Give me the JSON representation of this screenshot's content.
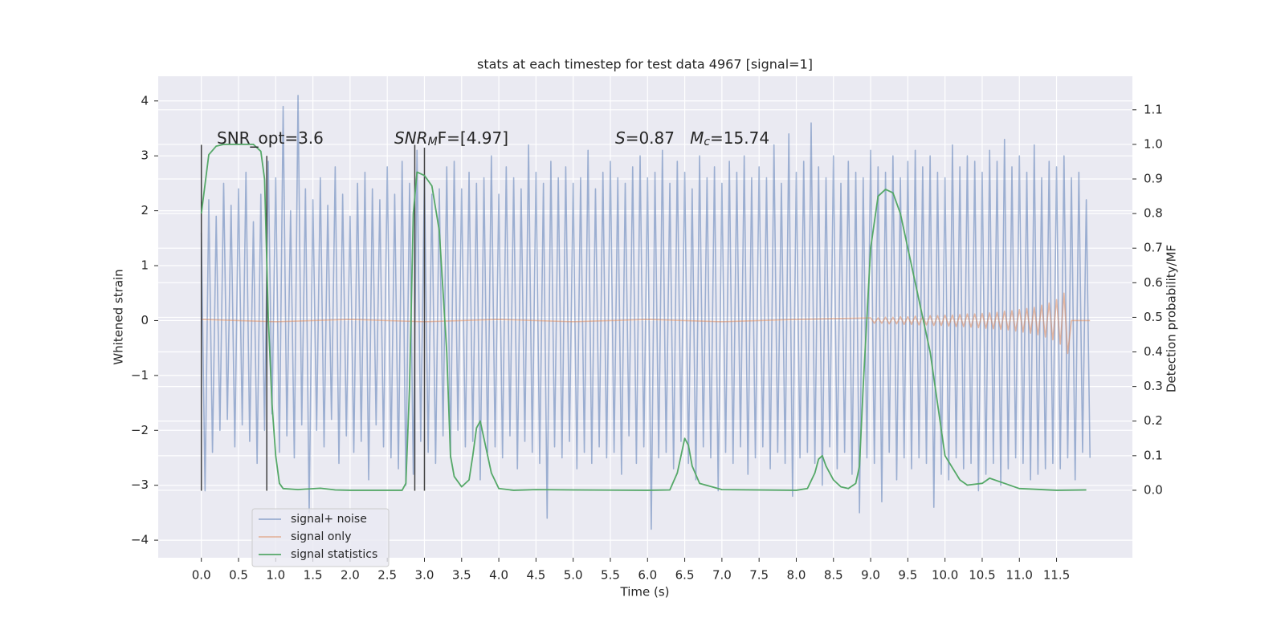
{
  "chart_data": {
    "type": "line",
    "title": "stats at each timestep for test data 4967 [signal=1]",
    "xlabel": "Time (s)",
    "ylabel": "Whitened strain",
    "y2label": "Detection probability/MF",
    "xlim": [
      -0.58,
      12.52
    ],
    "ylim": [
      -4.32,
      4.45
    ],
    "y2lim": [
      -0.195,
      1.197
    ],
    "xticks": [
      {
        "value": 0,
        "label": "0.0"
      },
      0.5,
      {
        "value": 1,
        "label": "1.0"
      },
      1.5,
      {
        "value": 2,
        "label": "2.0"
      },
      2.5,
      {
        "value": 3,
        "label": "3.0"
      },
      3.5,
      {
        "value": 4,
        "label": "4.0"
      },
      4.5,
      {
        "value": 5,
        "label": "5.0"
      },
      5.5,
      {
        "value": 6,
        "label": "6.0"
      },
      6.5,
      {
        "value": 7,
        "label": "7.0"
      },
      7.5,
      {
        "value": 8,
        "label": "8.0"
      },
      8.5,
      {
        "value": 9,
        "label": "9.0"
      },
      9.5,
      {
        "value": 10,
        "label": "10.0"
      },
      10.5,
      {
        "value": 11,
        "label": "11.0"
      },
      11.5
    ],
    "yticks": [
      {
        "value": -4,
        "label": "−4"
      },
      {
        "value": -3,
        "label": "−3"
      },
      {
        "value": -2,
        "label": "−2"
      },
      {
        "value": -1,
        "label": "−1"
      },
      0,
      1,
      2,
      3,
      4
    ],
    "y2ticks": [
      {
        "value": 0,
        "label": "0.0"
      },
      0.1,
      0.2,
      0.3,
      0.4,
      0.5,
      0.6,
      0.7,
      0.8,
      0.9,
      {
        "value": 1,
        "label": "1.0"
      },
      1.1
    ],
    "grid": true,
    "legend": "lower left",
    "annotations": [
      [
        {
          "t": "SNR_opt=3.6"
        }
      ],
      [
        {
          "t": "SNR",
          "italic": true
        },
        {
          "t": "M",
          "italic": true,
          "sub": true
        },
        {
          "t": "F=[4.97]"
        }
      ],
      [
        {
          "t": "S",
          "italic": true
        },
        {
          "t": "=0.87   "
        },
        {
          "t": "M",
          "italic": true
        },
        {
          "t": "c",
          "italic": true,
          "sub": true
        },
        {
          "t": "=15.74"
        }
      ]
    ],
    "vline_color": "#404040",
    "vlines": [
      {
        "x": 0,
        "ymin": -3.1,
        "ymax": 3.2
      },
      {
        "x": 0.88,
        "ymin": -3.1,
        "ymax": 3.0
      },
      {
        "x": 2.87,
        "ymin": -3.1,
        "ymax": 3.2
      },
      {
        "x": 3.0,
        "ymin": -3.1,
        "ymax": 3.15
      }
    ],
    "series": [
      {
        "name": "signal+ noise",
        "color": "#4c72b0",
        "alpha": 0.5,
        "x": [
          0,
          0.05,
          0.1,
          0.15,
          0.2,
          0.25,
          0.3,
          0.35,
          0.4,
          0.45,
          0.5,
          0.55,
          0.6,
          0.65,
          0.7,
          0.75,
          0.8,
          0.85,
          0.9,
          0.95,
          1,
          1.05,
          1.1,
          1.15,
          1.2,
          1.25,
          1.3,
          1.35,
          1.4,
          1.45,
          1.5,
          1.55,
          1.6,
          1.65,
          1.7,
          1.75,
          1.8,
          1.85,
          1.9,
          1.95,
          2,
          2.05,
          2.1,
          2.15,
          2.2,
          2.25,
          2.3,
          2.35,
          2.4,
          2.45,
          2.5,
          2.55,
          2.6,
          2.65,
          2.7,
          2.75,
          2.8,
          2.85,
          2.9,
          2.95,
          3,
          3.05,
          3.1,
          3.15,
          3.2,
          3.25,
          3.3,
          3.35,
          3.4,
          3.45,
          3.5,
          3.55,
          3.6,
          3.65,
          3.7,
          3.75,
          3.8,
          3.85,
          3.9,
          3.95,
          4,
          4.05,
          4.1,
          4.15,
          4.2,
          4.25,
          4.3,
          4.35,
          4.4,
          4.45,
          4.5,
          4.55,
          4.6,
          4.65,
          4.7,
          4.75,
          4.8,
          4.85,
          4.9,
          4.95,
          5,
          5.05,
          5.1,
          5.15,
          5.2,
          5.25,
          5.3,
          5.35,
          5.4,
          5.45,
          5.5,
          5.55,
          5.6,
          5.65,
          5.7,
          5.75,
          5.8,
          5.85,
          5.9,
          5.95,
          6,
          6.05,
          6.1,
          6.15,
          6.2,
          6.25,
          6.3,
          6.35,
          6.4,
          6.45,
          6.5,
          6.55,
          6.6,
          6.65,
          6.7,
          6.75,
          6.8,
          6.85,
          6.9,
          6.95,
          7,
          7.05,
          7.1,
          7.15,
          7.2,
          7.25,
          7.3,
          7.35,
          7.4,
          7.45,
          7.5,
          7.55,
          7.6,
          7.65,
          7.7,
          7.75,
          7.8,
          7.85,
          7.9,
          7.95,
          8,
          8.05,
          8.1,
          8.15,
          8.2,
          8.25,
          8.3,
          8.35,
          8.4,
          8.45,
          8.5,
          8.55,
          8.6,
          8.65,
          8.7,
          8.75,
          8.8,
          8.85,
          8.9,
          8.95,
          9,
          9.05,
          9.1,
          9.15,
          9.2,
          9.25,
          9.3,
          9.35,
          9.4,
          9.45,
          9.5,
          9.55,
          9.6,
          9.65,
          9.7,
          9.75,
          9.8,
          9.85,
          9.9,
          9.95,
          10,
          10.05,
          10.1,
          10.15,
          10.2,
          10.25,
          10.3,
          10.35,
          10.4,
          10.45,
          10.5,
          10.55,
          10.6,
          10.65,
          10.7,
          10.75,
          10.8,
          10.85,
          10.9,
          10.95,
          11,
          11.05,
          11.1,
          11.15,
          11.2,
          11.25,
          11.3,
          11.35,
          11.4,
          11.45,
          11.5,
          11.55,
          11.6,
          11.65,
          11.7,
          11.75,
          11.8,
          11.85,
          11.9,
          11.95
        ],
        "values": [
          1.6,
          -3.1,
          2.2,
          -2.4,
          1.9,
          -2.0,
          2.5,
          -1.8,
          2.1,
          -2.3,
          2.4,
          -1.9,
          2.7,
          -2.2,
          1.8,
          -2.6,
          2.3,
          -2.0,
          2.9,
          -1.7,
          2.6,
          -2.4,
          3.9,
          -2.1,
          2.0,
          -2.5,
          4.1,
          -1.9,
          2.4,
          -3.5,
          2.2,
          -2.0,
          2.6,
          -2.3,
          2.1,
          -1.8,
          2.8,
          -2.6,
          2.3,
          -2.1,
          1.9,
          -2.4,
          2.5,
          -2.2,
          2.7,
          -2.9,
          2.4,
          -1.9,
          2.2,
          -2.3,
          2.8,
          -2.5,
          2.3,
          -2.7,
          2.9,
          -3.0,
          2.5,
          -2.8,
          3.1,
          -2.2,
          2.6,
          -2.4,
          2.3,
          -2.6,
          2.4,
          -2.1,
          2.8,
          -2.5,
          2.9,
          -2.0,
          2.4,
          -2.3,
          2.7,
          -2.2,
          2.5,
          -2.9,
          2.6,
          -2.4,
          3.0,
          -2.3,
          2.3,
          -2.5,
          2.8,
          -2.1,
          2.6,
          -2.7,
          2.4,
          -2.2,
          3.2,
          -2.4,
          2.7,
          -2.6,
          2.5,
          -3.6,
          2.9,
          -2.3,
          2.6,
          -2.5,
          2.8,
          -2.2,
          2.5,
          -2.7,
          2.6,
          -2.4,
          3.1,
          -2.6,
          2.4,
          -2.3,
          2.7,
          -2.5,
          2.9,
          -2.4,
          2.6,
          -2.8,
          2.5,
          -2.1,
          2.8,
          -2.6,
          3.0,
          -2.3,
          2.6,
          -3.8,
          2.7,
          -2.5,
          3.1,
          -2.4,
          2.5,
          -2.7,
          2.9,
          -2.2,
          2.7,
          -2.6,
          2.4,
          -2.9,
          3.0,
          -2.3,
          2.6,
          -2.5,
          2.8,
          -3.1,
          2.5,
          -2.4,
          2.9,
          -2.6,
          2.7,
          -2.3,
          3.0,
          -2.8,
          2.6,
          -2.5,
          2.8,
          -2.3,
          2.6,
          -2.7,
          3.2,
          -2.4,
          2.5,
          -2.6,
          3.4,
          -3.2,
          2.7,
          -2.5,
          2.9,
          -2.4,
          3.6,
          -2.6,
          2.8,
          -3.0,
          2.6,
          -2.3,
          3.0,
          -2.7,
          2.5,
          -2.4,
          2.9,
          -2.8,
          2.7,
          -3.5,
          2.6,
          -2.5,
          3.1,
          -2.6,
          2.8,
          -3.3,
          2.7,
          -2.4,
          3.0,
          -2.9,
          2.6,
          -2.5,
          2.9,
          -2.7,
          3.1,
          -2.5,
          2.8,
          -2.6,
          3.0,
          -3.4,
          2.7,
          -2.8,
          2.6,
          -2.9,
          3.2,
          -2.5,
          2.8,
          -2.7,
          3.0,
          -2.6,
          2.9,
          -3.1,
          2.7,
          -2.8,
          3.1,
          -2.6,
          2.9,
          -3.0,
          3.3,
          -2.7,
          2.8,
          -2.5,
          3.0,
          -2.6,
          2.7,
          -2.9,
          3.2,
          -2.8,
          2.6,
          -2.7,
          2.9,
          -2.6,
          2.8,
          -2.7,
          3.0,
          -2.5,
          2.6,
          -2.9,
          2.7,
          -2.4,
          2.2,
          -2.5
        ]
      },
      {
        "name": "signal only",
        "color": "#dd8452",
        "alpha": 0.5,
        "x": [
          0,
          1,
          2,
          3,
          4,
          5,
          6,
          7,
          8,
          9,
          9.05,
          9.1,
          9.15,
          9.2,
          9.25,
          9.3,
          9.35,
          9.4,
          9.45,
          9.5,
          9.55,
          9.6,
          9.65,
          9.7,
          9.75,
          9.8,
          9.85,
          9.9,
          9.95,
          10,
          10.05,
          10.1,
          10.15,
          10.2,
          10.25,
          10.3,
          10.35,
          10.4,
          10.45,
          10.5,
          10.55,
          10.6,
          10.65,
          10.7,
          10.75,
          10.8,
          10.85,
          10.9,
          10.95,
          11,
          11.05,
          11.1,
          11.15,
          11.2,
          11.25,
          11.3,
          11.35,
          11.4,
          11.45,
          11.5,
          11.55,
          11.6,
          11.65,
          11.7,
          11.95
        ],
        "values": [
          0.02,
          -0.02,
          0.02,
          -0.02,
          0.02,
          -0.02,
          0.02,
          -0.02,
          0.02,
          0.05,
          -0.05,
          0.05,
          -0.05,
          0.06,
          -0.06,
          0.06,
          -0.06,
          0.07,
          -0.07,
          0.07,
          -0.07,
          0.08,
          -0.08,
          0.08,
          -0.08,
          0.09,
          -0.09,
          0.09,
          -0.09,
          0.1,
          -0.1,
          0.1,
          -0.11,
          0.11,
          -0.11,
          0.12,
          -0.12,
          0.12,
          -0.13,
          0.13,
          -0.14,
          0.14,
          -0.15,
          0.15,
          -0.16,
          0.17,
          -0.17,
          0.18,
          -0.19,
          0.2,
          -0.21,
          0.22,
          -0.23,
          0.24,
          -0.26,
          0.28,
          -0.3,
          0.32,
          -0.35,
          0.38,
          -0.43,
          0.5,
          -0.6,
          0,
          0
        ]
      },
      {
        "name": "signal statistics",
        "color": "#55a868",
        "axis": "y2",
        "x": [
          0,
          0.1,
          0.2,
          0.3,
          0.5,
          0.7,
          0.8,
          0.85,
          0.9,
          0.95,
          1.0,
          1.05,
          1.1,
          1.3,
          1.6,
          1.8,
          2.0,
          2.5,
          2.7,
          2.75,
          2.8,
          2.85,
          2.9,
          3.0,
          3.1,
          3.2,
          3.3,
          3.35,
          3.4,
          3.5,
          3.6,
          3.65,
          3.7,
          3.75,
          3.8,
          3.9,
          4.0,
          4.2,
          4.5,
          5.0,
          6.0,
          6.3,
          6.4,
          6.5,
          6.55,
          6.6,
          6.7,
          7.0,
          8.0,
          8.15,
          8.25,
          8.3,
          8.35,
          8.4,
          8.5,
          8.6,
          8.7,
          8.8,
          8.85,
          8.9,
          9.0,
          9.1,
          9.2,
          9.3,
          9.4,
          9.6,
          9.8,
          10.0,
          10.2,
          10.3,
          10.5,
          10.6,
          10.8,
          11.0,
          11.5,
          11.9
        ],
        "values": [
          0.8,
          0.97,
          0.995,
          1.0,
          1.0,
          1.0,
          0.98,
          0.9,
          0.5,
          0.25,
          0.1,
          0.02,
          0.005,
          0.002,
          0.006,
          0.001,
          0.0,
          0.0,
          0.0,
          0.02,
          0.3,
          0.8,
          0.92,
          0.91,
          0.88,
          0.75,
          0.4,
          0.1,
          0.04,
          0.01,
          0.03,
          0.1,
          0.18,
          0.2,
          0.15,
          0.05,
          0.005,
          0.0,
          0.002,
          0.001,
          0.0,
          0.001,
          0.05,
          0.15,
          0.13,
          0.07,
          0.02,
          0.002,
          0.0,
          0.005,
          0.05,
          0.09,
          0.1,
          0.07,
          0.03,
          0.01,
          0.005,
          0.02,
          0.07,
          0.3,
          0.7,
          0.85,
          0.87,
          0.86,
          0.8,
          0.6,
          0.4,
          0.1,
          0.03,
          0.015,
          0.02,
          0.035,
          0.02,
          0.005,
          0.0,
          0.001
        ]
      }
    ]
  }
}
